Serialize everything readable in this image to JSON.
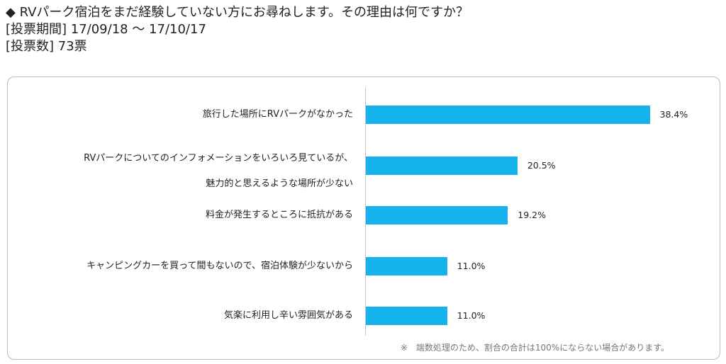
{
  "header": {
    "question": "◆  RVパーク宿泊をまだ経験していない方にお尋ねします。その理由は何ですか？",
    "period": "[投票期間] 17/09/18 ～ 17/10/17",
    "votes": "[投票数] 73票"
  },
  "chart_data": {
    "type": "bar",
    "orientation": "horizontal",
    "categories": [
      [
        "旅行した場所にRVパークがなかった"
      ],
      [
        "RVパークについてのインフォメーションをいろいろ見ているが、",
        "魅力的と思えるような場所が少ない"
      ],
      [
        "料金が発生するところに抵抗がある"
      ],
      [
        "キャンピングカーを買って間もないので、宿泊体験が少ないから"
      ],
      [
        "気楽に利用し辛い雰囲気がある"
      ]
    ],
    "values": [
      38.4,
      20.5,
      19.2,
      11.0,
      11.0
    ],
    "value_labels": [
      "38.4%",
      "20.5%",
      "19.2%",
      "11.0%",
      "11.0%"
    ],
    "xlim": [
      0,
      50
    ],
    "bar_color": "#15b2ec"
  },
  "footnote": "※　端数処理のため、割合の合計は100%にならない場合があります。"
}
